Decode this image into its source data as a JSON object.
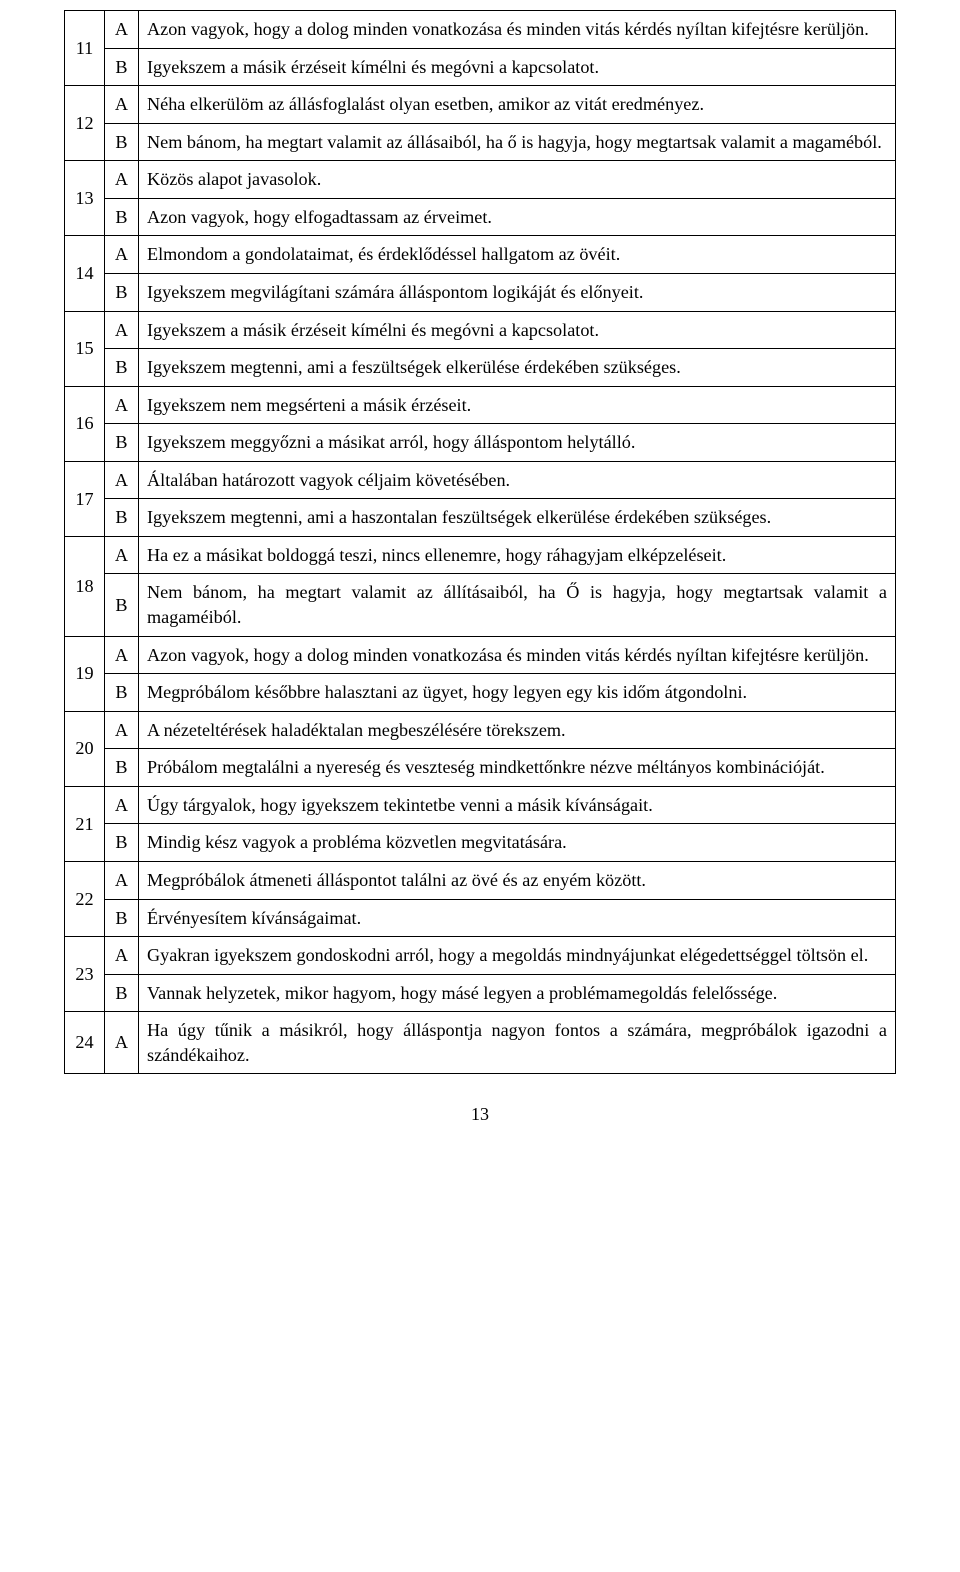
{
  "page_number": "13",
  "rows": [
    {
      "num": "11",
      "ab": "A",
      "text": "Azon vagyok, hogy a dolog minden vonatkozása és minden vitás kérdés nyíltan kifejtésre kerüljön."
    },
    {
      "num": "",
      "ab": "B",
      "text": "Igyekszem a másik érzéseit kímélni és megóvni a kapcsolatot."
    },
    {
      "num": "12",
      "ab": "A",
      "text": "Néha elkerülöm az állásfoglalást olyan esetben, amikor az vitát eredményez."
    },
    {
      "num": "",
      "ab": "B",
      "text": "Nem bánom, ha megtart valamit az állásaiból, ha ő is hagyja, hogy megtartsak valamit a magaméból."
    },
    {
      "num": "13",
      "ab": "A",
      "text": "Közös alapot javasolok."
    },
    {
      "num": "",
      "ab": "B",
      "text": "Azon vagyok, hogy elfogadtassam az érveimet."
    },
    {
      "num": "14",
      "ab": "A",
      "text": "Elmondom a gondolataimat, és érdeklődéssel hallgatom az övéit."
    },
    {
      "num": "",
      "ab": "B",
      "text": "Igyekszem megvilágítani számára álláspontom logikáját és előnyeit."
    },
    {
      "num": "15",
      "ab": "A",
      "text": "Igyekszem a másik érzéseit kímélni és megóvni a kapcsolatot."
    },
    {
      "num": "",
      "ab": "B",
      "text": "Igyekszem megtenni, ami a feszültségek elkerülése érdekében szükséges."
    },
    {
      "num": "16",
      "ab": "A",
      "text": "Igyekszem nem megsérteni a másik érzéseit."
    },
    {
      "num": "",
      "ab": "B",
      "text": "Igyekszem meggyőzni a másikat arról, hogy álláspontom helytálló."
    },
    {
      "num": "17",
      "ab": "A",
      "text": "Általában határozott vagyok céljaim követésében."
    },
    {
      "num": "",
      "ab": "B",
      "text": "Igyekszem megtenni, ami a haszontalan feszültségek elkerülése érdekében szükséges."
    },
    {
      "num": "18",
      "ab": "A",
      "text": "Ha ez a másikat boldoggá teszi, nincs ellenemre, hogy ráhagyjam elképzeléseit."
    },
    {
      "num": "",
      "ab": "B",
      "text": "Nem bánom, ha megtart valamit az állításaiból, ha Ő is hagyja, hogy megtartsak valamit a magaméiból."
    },
    {
      "num": "19",
      "ab": "A",
      "text": "Azon vagyok, hogy a dolog minden vonatkozása és minden vitás kérdés nyíltan kifejtésre kerüljön."
    },
    {
      "num": "",
      "ab": "B",
      "text": "Megpróbálom későbbre halasztani az ügyet, hogy legyen egy kis időm átgondolni."
    },
    {
      "num": "20",
      "ab": "A",
      "text": "A nézeteltérések haladéktalan megbeszélésére törekszem."
    },
    {
      "num": "",
      "ab": "B",
      "text": "Próbálom megtalálni a nyereség és veszteség mindkettőnkre nézve méltányos kombinációját."
    },
    {
      "num": "21",
      "ab": "A",
      "text": "Úgy tárgyalok, hogy igyekszem tekintetbe venni a másik kívánságait."
    },
    {
      "num": "",
      "ab": "B",
      "text": "Mindig kész vagyok a probléma közvetlen megvitatására."
    },
    {
      "num": "22",
      "ab": "A",
      "text": "Megpróbálok átmeneti álláspontot találni az övé és az enyém között."
    },
    {
      "num": "",
      "ab": "B",
      "text": "Érvényesítem kívánságaimat."
    },
    {
      "num": "23",
      "ab": "A",
      "text": "Gyakran igyekszem gondoskodni arról, hogy a megoldás mindnyájunkat elégedettséggel töltsön el."
    },
    {
      "num": "",
      "ab": "B",
      "text": "Vannak helyzetek, mikor hagyom, hogy másé legyen a problémamegoldás felelőssége."
    },
    {
      "num": "24",
      "ab": "A",
      "text": "Ha úgy tűnik a másikról, hogy álláspontja nagyon fontos a számára, megpróbálok igazodni a szándékaihoz."
    }
  ]
}
